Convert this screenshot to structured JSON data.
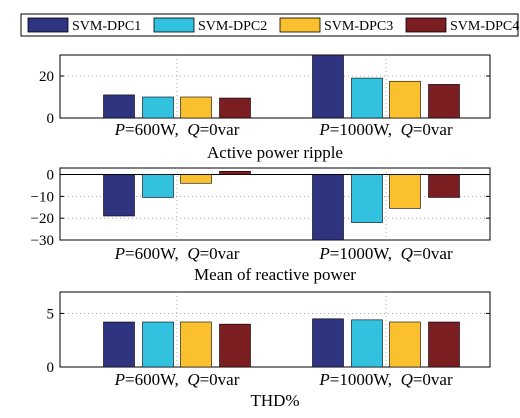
{
  "chart_data": {
    "type": "bar",
    "legend": {
      "placement": "top",
      "entries": [
        "SVM-DPC1",
        "SVM-DPC2",
        "SVM-DPC3",
        "SVM-DPC4"
      ]
    },
    "series_colors": [
      "#2f3480",
      "#33c1e0",
      "#fbc02d",
      "#7a1e22"
    ],
    "categories": [
      {
        "p": "P",
        "p_val": "=600W,",
        "q": "Q",
        "q_val": "=0var"
      },
      {
        "p": "P",
        "p_val": "=1000W,",
        "q": "Q",
        "q_val": "=0var"
      }
    ],
    "grid": "dotted",
    "subplots": [
      {
        "title": "Active power ripple",
        "ylim": [
          0,
          30
        ],
        "yticks": [
          0,
          20
        ],
        "series": [
          {
            "name": "SVM-DPC1",
            "values": [
              11,
              30
            ]
          },
          {
            "name": "SVM-DPC2",
            "values": [
              10,
              19
            ]
          },
          {
            "name": "SVM-DPC3",
            "values": [
              10,
              17.5
            ]
          },
          {
            "name": "SVM-DPC4",
            "values": [
              9.5,
              16
            ]
          }
        ]
      },
      {
        "title": "Mean of reactive power",
        "ylim": [
          -30,
          3
        ],
        "yticks": [
          0,
          -10,
          -20,
          -30
        ],
        "series": [
          {
            "name": "SVM-DPC1",
            "values": [
              -19,
              -30
            ]
          },
          {
            "name": "SVM-DPC2",
            "values": [
              -10.5,
              -22
            ]
          },
          {
            "name": "SVM-DPC3",
            "values": [
              -4,
              -15.5
            ]
          },
          {
            "name": "SVM-DPC4",
            "values": [
              1.5,
              -10.5
            ]
          }
        ]
      },
      {
        "title": "THD%",
        "ylim": [
          0,
          7
        ],
        "yticks": [
          0,
          5
        ],
        "series": [
          {
            "name": "SVM-DPC1",
            "values": [
              4.2,
              4.5
            ]
          },
          {
            "name": "SVM-DPC2",
            "values": [
              4.2,
              4.4
            ]
          },
          {
            "name": "SVM-DPC3",
            "values": [
              4.2,
              4.2
            ]
          },
          {
            "name": "SVM-DPC4",
            "values": [
              4.0,
              4.2
            ]
          }
        ]
      }
    ]
  }
}
